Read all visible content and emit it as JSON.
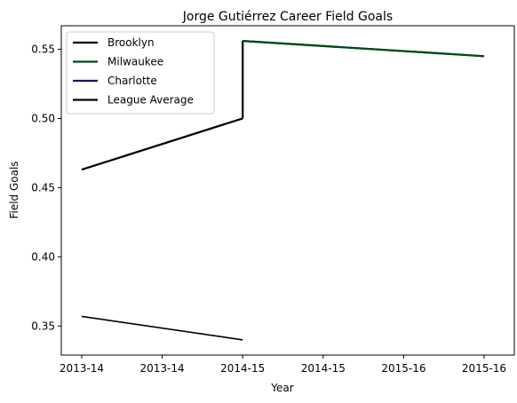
{
  "chart_data": {
    "type": "line",
    "title": "Jorge Gutiérrez  Career Field Goals",
    "xlabel": "Year",
    "ylabel": "Field Goals",
    "x_tick_labels": [
      "2013-14",
      "2013-14",
      "2014-15",
      "2014-15",
      "2015-16",
      "2015-16"
    ],
    "x_index_range": [
      0,
      5
    ],
    "ylim": [
      0.329,
      0.567
    ],
    "y_ticks": [
      "0.35",
      "0.40",
      "0.45",
      "0.50",
      "0.55"
    ],
    "y_tick_values": [
      0.35,
      0.4,
      0.45,
      0.5,
      0.55
    ],
    "grid": false,
    "legend_position": "top-left",
    "series": [
      {
        "name": "Brooklyn",
        "color": "#000000",
        "x": [
          0,
          2.0
        ],
        "y": [
          0.463,
          0.5
        ]
      },
      {
        "name": "Milwaukee",
        "color": "#00471b",
        "x": [
          2.0,
          5.0
        ],
        "y": [
          0.556,
          0.545
        ]
      },
      {
        "name": "Charlotte",
        "color": "#1d1160",
        "x": [
          2.0,
          2.0
        ],
        "y": [
          0.556,
          0.556
        ]
      },
      {
        "name": "League Average",
        "color": "#000000",
        "x": [
          0,
          2.0
        ],
        "y": [
          0.357,
          0.34
        ]
      }
    ],
    "connector": {
      "x": [
        2.0,
        2.0
      ],
      "y": [
        0.5,
        0.556
      ],
      "color": "#000000"
    }
  }
}
